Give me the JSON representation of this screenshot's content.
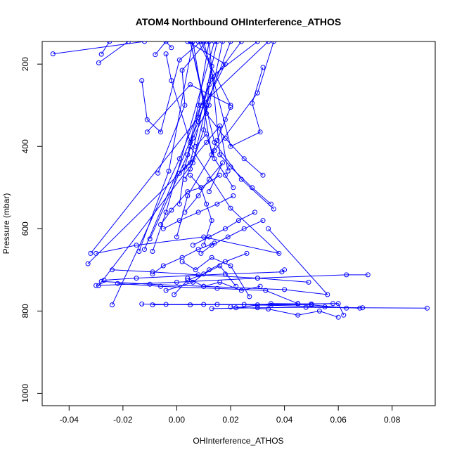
{
  "chart_data": {
    "type": "line",
    "title": "ATOM4 Northbound OHInterference_ATHOS",
    "xlabel": "OHInterference_ATHOS",
    "ylabel": "Pressure (mbar)",
    "xlim": [
      -0.05,
      0.096
    ],
    "ylim": [
      1030,
      145
    ],
    "y_reversed": true,
    "x_ticks": [
      -0.04,
      -0.02,
      0.0,
      0.02,
      0.04,
      0.06,
      0.08
    ],
    "x_tick_labels": [
      "-0.04",
      "-0.02",
      "0.00",
      "0.02",
      "0.04",
      "0.06",
      "0.08"
    ],
    "y_ticks": [
      200,
      400,
      600,
      800,
      1000
    ],
    "y_tick_labels": [
      "200",
      "400",
      "600",
      "800",
      "1000"
    ],
    "color": "#0000ff",
    "marker": "open-circle",
    "grid": false,
    "series": [
      {
        "x": [
          -0.046,
          -0.012
        ],
        "y": [
          175,
          145
        ]
      },
      {
        "x": [
          -0.029,
          -0.018
        ],
        "y": [
          197,
          145
        ]
      },
      {
        "x": [
          -0.028,
          -0.025
        ],
        "y": [
          176,
          145
        ]
      },
      {
        "x": [
          -0.008,
          -0.004,
          -0.002
        ],
        "y": [
          177,
          145,
          160
        ]
      },
      {
        "x": [
          -0.033,
          0.005,
          0.015
        ],
        "y": [
          685,
          440,
          145
        ]
      },
      {
        "x": [
          -0.032,
          0.008,
          0.018,
          0.004
        ],
        "y": [
          660,
          330,
          200,
          145
        ]
      },
      {
        "x": [
          -0.029,
          0.006,
          0.011,
          0.02
        ],
        "y": [
          738,
          440,
          300,
          145
        ]
      },
      {
        "x": [
          -0.024,
          0.001,
          0.012,
          0.024
        ],
        "y": [
          785,
          430,
          250,
          145
        ]
      },
      {
        "x": [
          -0.014,
          -0.003,
          0.006
        ],
        "y": [
          655,
          460,
          145
        ]
      },
      {
        "x": [
          -0.012,
          0.008,
          0.013,
          0.03
        ],
        "y": [
          650,
          340,
          230,
          145
        ]
      },
      {
        "x": [
          -0.01,
          0.004,
          0.009,
          0.034
        ],
        "y": [
          625,
          420,
          300,
          145
        ]
      },
      {
        "x": [
          -0.009,
          -0.004,
          0.014
        ],
        "y": [
          655,
          560,
          145
        ]
      },
      {
        "x": [
          -0.007,
          0.003,
          0.002,
          0.011
        ],
        "y": [
          465,
          300,
          215,
          145
        ]
      },
      {
        "x": [
          -0.013,
          -0.011,
          -0.006,
          0.001,
          0.009
        ],
        "y": [
          240,
          335,
          365,
          190,
          145
        ]
      },
      {
        "x": [
          -0.011,
          0.005,
          0.02,
          0.008
        ],
        "y": [
          365,
          250,
          300,
          145
        ]
      },
      {
        "x": [
          -0.004,
          -0.002,
          0.005,
          0.008,
          0.012
        ],
        "y": [
          175,
          240,
          390,
          300,
          145
        ]
      },
      {
        "x": [
          0.0,
          0.004,
          0.014,
          0.03,
          0.036
        ],
        "y": [
          620,
          520,
          410,
          270,
          145
        ]
      },
      {
        "x": [
          0.001,
          0.003,
          0.006,
          0.012,
          0.017
        ],
        "y": [
          540,
          450,
          380,
          300,
          145
        ]
      },
      {
        "x": [
          0.003,
          0.005,
          0.01,
          0.013,
          0.009
        ],
        "y": [
          480,
          455,
          360,
          205,
          145
        ]
      },
      {
        "x": [
          0.032,
          0.028,
          0.031,
          0.02,
          0.01
        ],
        "y": [
          208,
          295,
          365,
          400,
          145
        ]
      },
      {
        "x": [
          0.02,
          0.018,
          0.015,
          0.013,
          0.006
        ],
        "y": [
          305,
          335,
          385,
          420,
          145
        ]
      },
      {
        "x": [
          0.032,
          0.025,
          0.018,
          0.011,
          0.005
        ],
        "y": [
          470,
          430,
          380,
          320,
          145
        ]
      },
      {
        "x": [
          0.035,
          0.028,
          0.02,
          0.016,
          0.012
        ],
        "y": [
          540,
          500,
          450,
          420,
          145
        ]
      },
      {
        "x": [
          0.036,
          0.024,
          0.014,
          0.005
        ],
        "y": [
          552,
          480,
          390,
          145
        ]
      },
      {
        "x": [
          -0.03,
          -0.015,
          0.01,
          0.038,
          0.02,
          0.005
        ],
        "y": [
          660,
          640,
          620,
          660,
          550,
          400
        ]
      },
      {
        "x": [
          -0.027,
          -0.015,
          0.018,
          0.039,
          0.04
        ],
        "y": [
          725,
          720,
          710,
          705,
          700
        ]
      },
      {
        "x": [
          -0.03,
          0.0,
          0.03,
          0.063,
          0.071
        ],
        "y": [
          738,
          730,
          720,
          712,
          712
        ]
      },
      {
        "x": [
          -0.028,
          -0.01,
          0.01,
          0.04,
          0.056,
          0.034
        ],
        "y": [
          728,
          735,
          740,
          748,
          760,
          600
        ]
      },
      {
        "x": [
          -0.024,
          -0.009,
          0.008,
          0.03,
          0.049
        ],
        "y": [
          700,
          705,
          712,
          720,
          730
        ]
      },
      {
        "x": [
          -0.022,
          -0.006,
          0.015,
          0.033,
          0.045
        ],
        "y": [
          733,
          740,
          745,
          750,
          782
        ]
      },
      {
        "x": [
          -0.013,
          0.005,
          0.025,
          0.045,
          0.058
        ],
        "y": [
          783,
          785,
          784,
          783,
          782
        ]
      },
      {
        "x": [
          -0.009,
          0.01,
          0.03,
          0.05,
          0.063
        ],
        "y": [
          785,
          784,
          785,
          785,
          793
        ]
      },
      {
        "x": [
          -0.004,
          0.015,
          0.035,
          0.055,
          0.068
        ],
        "y": [
          784,
          784,
          786,
          790,
          793
        ]
      },
      {
        "x": [
          0.013,
          0.03,
          0.048,
          0.069,
          0.093
        ],
        "y": [
          794,
          792,
          791,
          792,
          793
        ]
      },
      {
        "x": [
          0.02,
          0.034,
          0.045,
          0.053,
          0.06
        ],
        "y": [
          790,
          795,
          810,
          800,
          815
        ]
      },
      {
        "x": [
          0.022,
          0.035,
          0.05,
          0.06,
          0.062
        ],
        "y": [
          792,
          782,
          783,
          782,
          810
        ]
      },
      {
        "x": [
          -0.004,
          0.006,
          0.012,
          0.018,
          0.026
        ],
        "y": [
          750,
          730,
          700,
          680,
          660
        ]
      },
      {
        "x": [
          -0.001,
          0.004,
          0.01,
          0.016,
          0.022
        ],
        "y": [
          760,
          725,
          710,
          690,
          740
        ]
      },
      {
        "x": [
          0.004,
          0.01,
          0.016,
          0.024,
          0.031
        ],
        "y": [
          720,
          740,
          730,
          750,
          740
        ]
      },
      {
        "x": [
          0.002,
          0.007,
          0.013,
          0.02,
          0.027
        ],
        "y": [
          680,
          700,
          670,
          690,
          765
        ]
      },
      {
        "x": [
          0.006,
          0.012,
          0.018,
          0.023,
          0.029
        ],
        "y": [
          640,
          620,
          600,
          580,
          560
        ]
      },
      {
        "x": [
          -0.005,
          0.001,
          0.008,
          0.015,
          0.021
        ],
        "y": [
          600,
          580,
          560,
          540,
          520
        ]
      },
      {
        "x": [
          -0.006,
          -0.002,
          0.004,
          0.009,
          0.016
        ],
        "y": [
          590,
          555,
          510,
          500,
          470
        ]
      },
      {
        "x": [
          0.001,
          0.006,
          0.011,
          0.016,
          0.019
        ],
        "y": [
          465,
          430,
          390,
          350,
          460
        ]
      },
      {
        "x": [
          0.003,
          0.008,
          0.012,
          0.017,
          0.012
        ],
        "y": [
          560,
          520,
          480,
          440,
          510
        ]
      },
      {
        "x": [
          0.005,
          0.009,
          0.011,
          0.013,
          0.01
        ],
        "y": [
          470,
          500,
          540,
          580,
          640
        ]
      },
      {
        "x": [
          -0.009,
          -0.005,
          0.002,
          0.008,
          0.014
        ],
        "y": [
          710,
          690,
          670,
          650,
          635
        ]
      },
      {
        "x": [
          0.009,
          0.013,
          0.019,
          0.025,
          0.032
        ],
        "y": [
          660,
          640,
          620,
          600,
          580
        ]
      },
      {
        "x": [
          0.007,
          0.011,
          0.014,
          0.018,
          0.021
        ],
        "y": [
          400,
          370,
          430,
          470,
          500
        ]
      }
    ]
  }
}
